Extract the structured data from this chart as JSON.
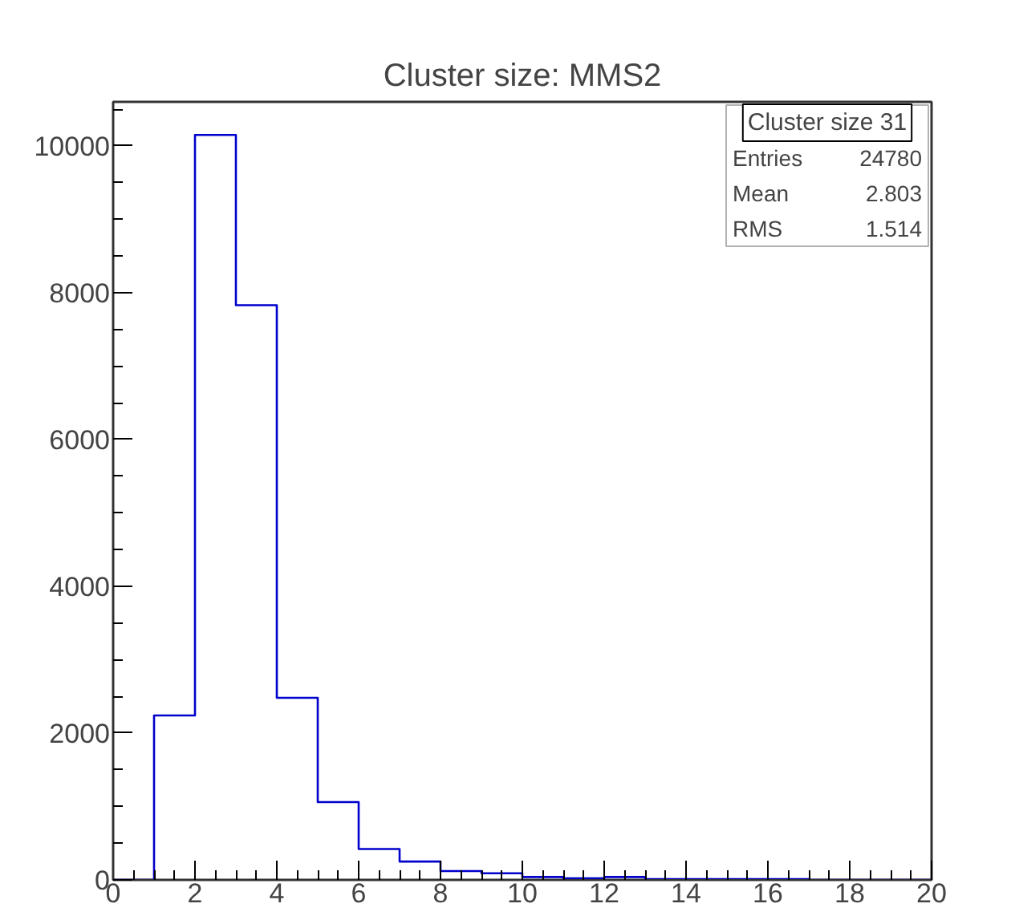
{
  "chart_data": {
    "type": "histogram",
    "title": "Cluster size: MMS2",
    "bins": [
      0,
      1,
      2,
      3,
      4,
      5,
      6,
      7,
      8,
      9,
      10,
      11,
      12,
      13,
      14,
      15,
      16,
      17,
      18,
      19,
      20
    ],
    "values": [
      0,
      2240,
      10150,
      7830,
      2480,
      1060,
      420,
      250,
      120,
      90,
      40,
      20,
      40,
      10,
      10,
      10,
      10,
      0,
      0,
      0
    ],
    "color": "#0000cc",
    "xlim": [
      0,
      20
    ],
    "ylim": [
      0,
      10600
    ],
    "xticks": [
      0,
      2,
      4,
      6,
      8,
      10,
      12,
      14,
      16,
      18,
      20
    ],
    "yticks": [
      0,
      2000,
      4000,
      6000,
      8000,
      10000
    ],
    "annotations": [
      "Cluster size 31",
      "Entries 24780",
      "Mean 2.803",
      "RMS 1.514"
    ],
    "grid": false
  }
}
